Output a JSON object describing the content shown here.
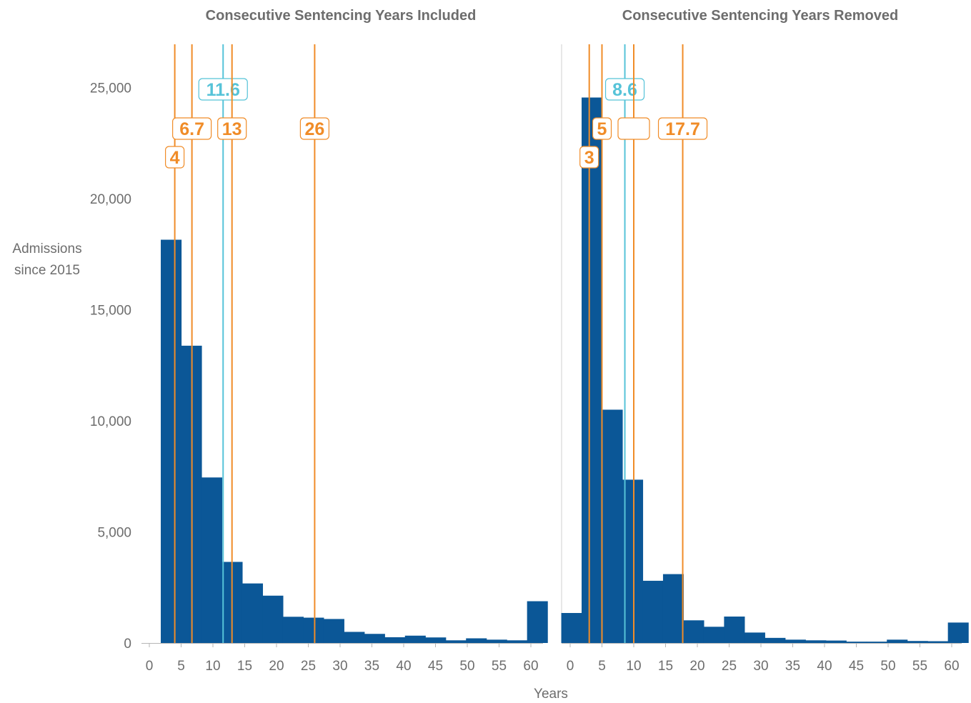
{
  "chart_data": {
    "type": "bar",
    "ylabel": [
      "Admissions",
      "since 2015"
    ],
    "xlabel": "Years",
    "ylim": [
      0,
      27000
    ],
    "yticks": [
      0,
      5000,
      10000,
      15000,
      20000,
      25000
    ],
    "ytick_labels": [
      "0",
      "5,000",
      "10,000",
      "15,000",
      "20,000",
      "25,000"
    ],
    "xticks": [
      0,
      5,
      10,
      15,
      20,
      25,
      30,
      35,
      40,
      45,
      50,
      55,
      60
    ],
    "colors": {
      "bar": "#0b5797",
      "median": "#56c3d8",
      "quantile": "#f08c28",
      "axis": "#b5b5b5",
      "text": "#6d6d6d"
    },
    "panels": [
      {
        "title": "Consecutive Sentencing Years Included",
        "xlim": [
          -1.5,
          62
        ],
        "bar_width": 3.2,
        "bars": [
          {
            "x": 3.4,
            "value": 18150
          },
          {
            "x": 6.6,
            "value": 13380
          },
          {
            "x": 9.8,
            "value": 7450
          },
          {
            "x": 13.0,
            "value": 3650
          },
          {
            "x": 16.2,
            "value": 2680
          },
          {
            "x": 19.4,
            "value": 2130
          },
          {
            "x": 22.6,
            "value": 1180
          },
          {
            "x": 25.8,
            "value": 1140
          },
          {
            "x": 29.0,
            "value": 1080
          },
          {
            "x": 32.2,
            "value": 500
          },
          {
            "x": 35.4,
            "value": 410
          },
          {
            "x": 38.6,
            "value": 260
          },
          {
            "x": 41.8,
            "value": 330
          },
          {
            "x": 45.0,
            "value": 250
          },
          {
            "x": 48.2,
            "value": 120
          },
          {
            "x": 51.4,
            "value": 210
          },
          {
            "x": 54.6,
            "value": 150
          },
          {
            "x": 57.8,
            "value": 120
          },
          {
            "x": 61.0,
            "value": 1880
          }
        ],
        "markers": [
          {
            "x": 4.0,
            "label": "4",
            "kind": "quantile",
            "row": 3
          },
          {
            "x": 6.7,
            "label": "6.7",
            "kind": "quantile",
            "row": 2
          },
          {
            "x": 11.6,
            "label": "11.6",
            "kind": "median",
            "row": 1
          },
          {
            "x": 13.0,
            "label": "13",
            "kind": "quantile",
            "row": 2
          },
          {
            "x": 26.0,
            "label": "26",
            "kind": "quantile",
            "row": 2
          }
        ]
      },
      {
        "title": "Consecutive Sentencing Years Removed",
        "xlim": [
          -1.3,
          62
        ],
        "bar_width": 3.2,
        "bars": [
          {
            "x": 0.2,
            "value": 1350
          },
          {
            "x": 3.4,
            "value": 24550
          },
          {
            "x": 6.6,
            "value": 10500
          },
          {
            "x": 9.8,
            "value": 7350
          },
          {
            "x": 13.0,
            "value": 2800
          },
          {
            "x": 16.2,
            "value": 3100
          },
          {
            "x": 19.4,
            "value": 1020
          },
          {
            "x": 22.6,
            "value": 730
          },
          {
            "x": 25.8,
            "value": 1190
          },
          {
            "x": 29.0,
            "value": 470
          },
          {
            "x": 32.2,
            "value": 230
          },
          {
            "x": 35.4,
            "value": 150
          },
          {
            "x": 38.6,
            "value": 120
          },
          {
            "x": 41.8,
            "value": 110
          },
          {
            "x": 45.0,
            "value": 60
          },
          {
            "x": 48.2,
            "value": 60
          },
          {
            "x": 51.4,
            "value": 150
          },
          {
            "x": 54.6,
            "value": 90
          },
          {
            "x": 57.8,
            "value": 80
          },
          {
            "x": 61.0,
            "value": 920
          }
        ],
        "markers": [
          {
            "x": 3.0,
            "label": "3",
            "kind": "quantile",
            "row": 3
          },
          {
            "x": 5.0,
            "label": "5",
            "kind": "quantile",
            "row": 2
          },
          {
            "x": 8.6,
            "label": "8.6",
            "kind": "median",
            "row": 1
          },
          {
            "x": 10.0,
            "label": "",
            "kind": "quantile",
            "row": 2
          },
          {
            "x": 17.7,
            "label": "17.7",
            "kind": "quantile",
            "row": 2
          }
        ]
      }
    ]
  }
}
